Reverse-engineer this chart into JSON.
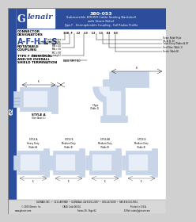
{
  "title_part": "380-053",
  "title_line1": "Submersible EMI RFI Cable Sealing Backshell",
  "title_line2": "with Strain Relief",
  "title_line3": "Type F - Hermaphrodite Coupling - Full Radius Profile",
  "connector_label1": "CONNECTOR",
  "connector_label2": "DESIGNATORS",
  "designator": "A-F-H-L-S",
  "coupling1": "ROTATABLE",
  "coupling2": "COUPLING",
  "type_label1": "TYPE F INDIVIDUAL",
  "type_label2": "AND/OR OVERALL",
  "type_label3": "SHIELD TERMINATION",
  "header_bg": "#2b4d9c",
  "logo_bg": "#ffffff",
  "body_bg": "#ffffff",
  "left_sidebar_bg": "#2b4d9c",
  "footer_bg": "#d8d8d8",
  "footer_line1": "GLENAIR, INC.  •  1211 AIR WAY  •  GLENDALE, CA 91201-2497  •  818-247-6000  •  FAX 818-500-9912",
  "footer_web": "www.glenair.com",
  "footer_series": "Series 39 - Page 62",
  "footer_email": "E-Mail: sales@glenair.com",
  "footer_copy": "© 2003 Glenair, Inc.",
  "footer_cage": "CAGE Code 06324",
  "footer_printed": "Printed in U.S.A.",
  "page_num": "62",
  "draw_color": "#5a7fbf",
  "draw_dark": "#3a5a8a",
  "draw_light": "#c8d4e8",
  "background_color": "#d0d0d0",
  "part_number_str": "380 F  22  33  13  13  03  03",
  "pn_labels_left": [
    "Product Series",
    "Connector Designator",
    "Amphenol Profile\n  MA = 45\n  MA = 90\n  MC = 60",
    "Seepage (limit for straight)"
  ],
  "pn_labels_right": [
    "Strain Relief Style\n(N, A, B, D)",
    "Cable Entry (Tables A, B)",
    "Shell Size (Table 1)",
    "Finish (Table B)"
  ],
  "base_part": "BASE PART NO.",
  "style_a_label": "STYLE A\n(See Note 1)",
  "style_names": [
    "STYLE A\nHeavy Duty\n(Table A)",
    "STYLE B\nMedium Duty\n(Table B)",
    "STYLE AB\nMedium Duty\n(Table B)",
    "STYLE B\nMedium Duty\n( Table B)"
  ]
}
